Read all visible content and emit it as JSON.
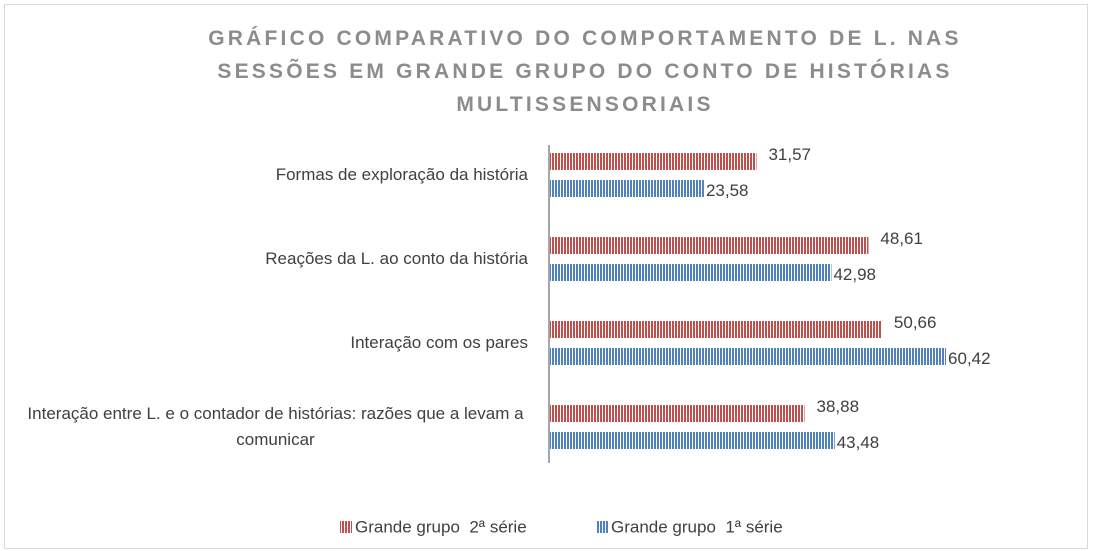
{
  "chart_data": {
    "type": "bar",
    "orientation": "horizontal",
    "title": "GRÁFICO COMPARATIVO DO COMPORTAMENTO DE L. NAS SESSÕES EM GRANDE GRUPO DO CONTO DE HISTÓRIAS MULTISSENSORIAIS",
    "categories": [
      "Formas de exploração da história",
      "Reações da L. ao conto da história",
      "Interação com os pares",
      "Interação entre L. e o contador de histórias: razões que a levam a comunicar"
    ],
    "series": [
      {
        "name": "Grande grupo  2ª série",
        "color": "#c0504d",
        "values": [
          31.57,
          48.61,
          50.66,
          38.88
        ],
        "value_labels": [
          "31,57",
          "48,61",
          "50,66",
          "38,88"
        ]
      },
      {
        "name": "Grande grupo  1ª série",
        "color": "#4f81bd",
        "values": [
          23.58,
          42.98,
          60.42,
          43.48
        ],
        "value_labels": [
          "23,58",
          "42,98",
          "60,42",
          "43,48"
        ]
      }
    ],
    "xlim": [
      0,
      70
    ],
    "legend": "bottom"
  }
}
